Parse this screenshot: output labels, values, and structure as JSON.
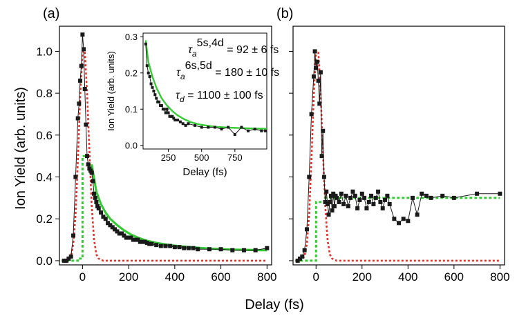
{
  "panel_labels": {
    "a": "(a)",
    "b": "(b)"
  },
  "shared_axes": {
    "xlabel": "Delay (fs)",
    "ylabel": "Ion Yield (arb. units)"
  },
  "inset": {
    "xlabel": "Delay (fs)",
    "ylabel": "Ion Yield (arb. units)",
    "annotations": [
      {
        "sym": "τ",
        "sub": "a",
        "sup": "5s,4d",
        "rest": " = 92 ± 6 fs"
      },
      {
        "sym": "τ",
        "sub": "a",
        "sup": "6s,5d",
        "rest": " = 180 ± 10 fs"
      },
      {
        "sym": "τ",
        "sub": "d",
        "sup": "",
        "rest": " = 1100 ± 100 fs"
      }
    ]
  },
  "chart_data": [
    {
      "type": "line",
      "panel": "(a)",
      "xlabel": "Delay (fs)",
      "ylabel": "Ion Yield (arb. units)",
      "xlim": [
        -100,
        820
      ],
      "ylim": [
        -0.02,
        1.12
      ],
      "xticks": [
        0,
        200,
        400,
        600,
        800
      ],
      "yticks": [
        0.0,
        0.2,
        0.4,
        0.6,
        0.8,
        1.0
      ],
      "colors": {
        "data": "#1a1a1a",
        "gaussian": "#e8302a",
        "fit": "#33cc33"
      },
      "series": [
        {
          "kind": "data",
          "x": [
            -80,
            -70,
            -60,
            -50,
            -40,
            -30,
            -20,
            -15,
            -10,
            -5,
            0,
            5,
            10,
            15,
            20,
            25,
            30,
            35,
            40,
            45,
            50,
            55,
            60,
            65,
            70,
            80,
            90,
            100,
            110,
            120,
            130,
            140,
            150,
            160,
            170,
            180,
            190,
            200,
            210,
            220,
            230,
            240,
            250,
            260,
            270,
            280,
            290,
            300,
            320,
            340,
            360,
            380,
            400,
            420,
            440,
            460,
            480,
            500,
            550,
            600,
            650,
            700,
            750,
            800
          ],
          "y": [
            0.0,
            0.0,
            0.01,
            0.02,
            0.12,
            0.4,
            0.68,
            0.75,
            0.86,
            0.93,
            1.08,
            1.01,
            0.82,
            0.65,
            0.5,
            0.46,
            0.44,
            0.43,
            0.42,
            0.38,
            0.32,
            0.3,
            0.28,
            0.26,
            0.25,
            0.23,
            0.21,
            0.2,
            0.18,
            0.17,
            0.16,
            0.15,
            0.14,
            0.13,
            0.13,
            0.12,
            0.11,
            0.11,
            0.11,
            0.1,
            0.1,
            0.1,
            0.09,
            0.09,
            0.09,
            0.085,
            0.08,
            0.08,
            0.075,
            0.07,
            0.07,
            0.07,
            0.065,
            0.065,
            0.06,
            0.06,
            0.06,
            0.055,
            0.055,
            0.055,
            0.05,
            0.05,
            0.05,
            0.06
          ]
        },
        {
          "kind": "gaussian",
          "x": [
            -90,
            -70,
            -50,
            -40,
            -30,
            -20,
            -10,
            0,
            10,
            20,
            30,
            40,
            50,
            60,
            70,
            90,
            120,
            200,
            300,
            400,
            500,
            600,
            700,
            800
          ],
          "y": [
            0.0,
            0.0,
            0.02,
            0.08,
            0.22,
            0.48,
            0.78,
            1.0,
            1.0,
            0.8,
            0.52,
            0.26,
            0.1,
            0.03,
            0.01,
            0.0,
            0.0,
            0.0,
            0.0,
            0.0,
            0.0,
            0.0,
            0.0,
            0.0
          ]
        },
        {
          "kind": "fit-rise",
          "x": [
            -90,
            -20,
            -20,
            0,
            0,
            20
          ],
          "y": [
            0.0,
            0.0,
            0.01,
            0.01,
            0.5,
            0.5
          ]
        },
        {
          "kind": "fit",
          "x": [
            40,
            60,
            80,
            100,
            120,
            150,
            180,
            210,
            240,
            280,
            320,
            360,
            400,
            450,
            500,
            550,
            600,
            650,
            700,
            750,
            800
          ],
          "y": [
            0.46,
            0.33,
            0.27,
            0.23,
            0.2,
            0.17,
            0.145,
            0.125,
            0.11,
            0.095,
            0.085,
            0.078,
            0.072,
            0.066,
            0.062,
            0.058,
            0.055,
            0.053,
            0.052,
            0.051,
            0.05
          ]
        }
      ]
    },
    {
      "type": "line",
      "panel": "inset",
      "xlabel": "Delay (fs)",
      "ylabel": "Ion Yield (arb. units)",
      "xlim": [
        60,
        990
      ],
      "ylim": [
        -0.01,
        0.31
      ],
      "xticks": [
        250,
        500,
        750
      ],
      "yticks": [
        0.0,
        0.1,
        0.2,
        0.3
      ],
      "series": [
        {
          "kind": "data",
          "x": [
            80,
            90,
            100,
            110,
            120,
            130,
            140,
            150,
            160,
            170,
            180,
            190,
            200,
            210,
            220,
            230,
            240,
            250,
            260,
            270,
            280,
            290,
            300,
            320,
            340,
            360,
            380,
            400,
            450,
            500,
            550,
            600,
            650,
            700,
            750,
            800,
            850,
            900,
            950,
            980
          ],
          "y": [
            0.28,
            0.22,
            0.2,
            0.19,
            0.17,
            0.16,
            0.15,
            0.14,
            0.13,
            0.12,
            0.12,
            0.11,
            0.11,
            0.1,
            0.1,
            0.09,
            0.1,
            0.09,
            0.08,
            0.08,
            0.08,
            0.075,
            0.07,
            0.07,
            0.065,
            0.06,
            0.055,
            0.06,
            0.055,
            0.05,
            0.05,
            0.05,
            0.045,
            0.05,
            0.03,
            0.05,
            0.04,
            0.045,
            0.04,
            0.04
          ]
        },
        {
          "kind": "fit",
          "x": [
            80,
            100,
            130,
            160,
            200,
            240,
            280,
            320,
            370,
            420,
            480,
            550,
            620,
            700,
            780,
            860,
            940,
            990
          ],
          "y": [
            0.29,
            0.23,
            0.19,
            0.16,
            0.13,
            0.11,
            0.095,
            0.083,
            0.072,
            0.064,
            0.058,
            0.054,
            0.051,
            0.049,
            0.048,
            0.047,
            0.046,
            0.046
          ]
        }
      ]
    },
    {
      "type": "line",
      "panel": "(b)",
      "xlabel": "Delay (fs)",
      "ylabel": "Ion Yield (arb. units)",
      "xlim": [
        -100,
        820
      ],
      "ylim": [
        -0.02,
        1.12
      ],
      "xticks": [
        0,
        200,
        400,
        600,
        800
      ],
      "yticks": [
        0.0,
        0.2,
        0.4,
        0.6,
        0.8,
        1.0
      ],
      "series": [
        {
          "kind": "data",
          "x": [
            -80,
            -70,
            -60,
            -50,
            -40,
            -30,
            -20,
            -10,
            -5,
            0,
            5,
            10,
            15,
            20,
            25,
            30,
            35,
            40,
            45,
            50,
            55,
            60,
            65,
            70,
            75,
            80,
            85,
            90,
            100,
            110,
            120,
            130,
            140,
            150,
            160,
            170,
            180,
            190,
            200,
            210,
            220,
            230,
            240,
            250,
            260,
            270,
            280,
            290,
            300,
            310,
            320,
            340,
            360,
            380,
            400,
            420,
            440,
            460,
            480,
            500,
            550,
            600,
            700,
            800
          ],
          "y": [
            0.0,
            0.01,
            0.02,
            0.05,
            0.15,
            0.4,
            0.7,
            0.88,
            1.0,
            0.92,
            0.95,
            0.86,
            0.75,
            0.9,
            0.5,
            0.62,
            0.4,
            0.28,
            0.33,
            0.27,
            0.22,
            0.28,
            0.31,
            0.24,
            0.32,
            0.26,
            0.31,
            0.3,
            0.28,
            0.32,
            0.27,
            0.31,
            0.26,
            0.3,
            0.33,
            0.31,
            0.25,
            0.29,
            0.32,
            0.3,
            0.25,
            0.28,
            0.31,
            0.27,
            0.3,
            0.33,
            0.28,
            0.25,
            0.29,
            0.31,
            0.27,
            0.2,
            0.18,
            0.2,
            0.19,
            0.3,
            0.22,
            0.32,
            0.31,
            0.3,
            0.31,
            0.3,
            0.32,
            0.32
          ]
        },
        {
          "kind": "gaussian",
          "x": [
            -90,
            -70,
            -50,
            -40,
            -30,
            -20,
            -10,
            0,
            10,
            20,
            30,
            40,
            50,
            60,
            70,
            90,
            120,
            200,
            300,
            400,
            500,
            600,
            700,
            800
          ],
          "y": [
            0.0,
            0.0,
            0.02,
            0.08,
            0.22,
            0.48,
            0.78,
            1.0,
            1.0,
            0.8,
            0.52,
            0.26,
            0.1,
            0.03,
            0.01,
            0.0,
            0.0,
            0.0,
            0.0,
            0.0,
            0.0,
            0.0,
            0.0,
            0.0
          ]
        },
        {
          "kind": "fit",
          "x": [
            -90,
            0,
            0,
            40,
            40,
            800
          ],
          "y": [
            0.0,
            0.0,
            0.28,
            0.28,
            0.3,
            0.3
          ]
        }
      ]
    }
  ]
}
